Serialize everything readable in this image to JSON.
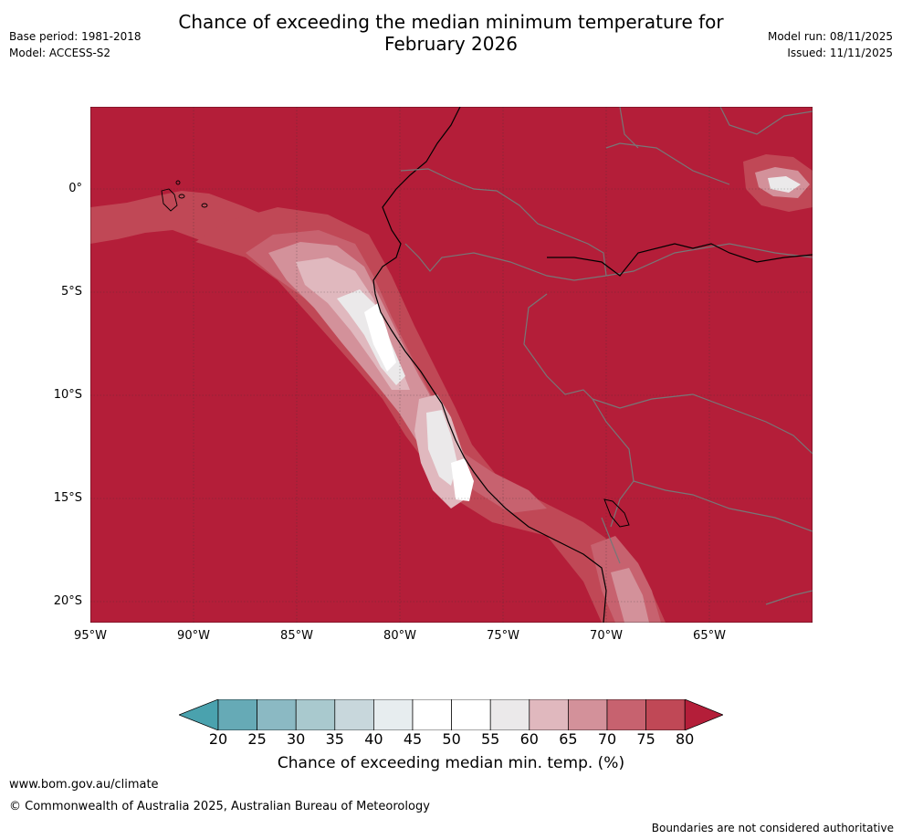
{
  "header": {
    "title_line1": "Chance of exceeding the median minimum temperature for",
    "title_line2": "February 2026",
    "base_period": "Base period: 1981-2018",
    "model": "Model: ACCESS-S2",
    "model_run": "Model run: 08/11/2025",
    "issued": "Issued: 11/11/2025"
  },
  "map": {
    "region": "Western South America and eastern Pacific",
    "lat_labels": [
      "0°",
      "5°S",
      "10°S",
      "15°S",
      "20°S"
    ],
    "lon_labels": [
      "95°W",
      "90°W",
      "85°W",
      "80°W",
      "75°W",
      "70°W",
      "65°W"
    ],
    "background_class_color": "#b41e39"
  },
  "colorbar": {
    "ticks": [
      "20",
      "25",
      "30",
      "35",
      "40",
      "45",
      "50",
      "55",
      "60",
      "65",
      "70",
      "75",
      "80"
    ],
    "colors": [
      "#66aab6",
      "#8bb9c3",
      "#a9c9ce",
      "#c8d7dc",
      "#e7edef",
      "#ffffff",
      "#ffffff",
      "#ebe9ea",
      "#e0b8be",
      "#d3919a",
      "#c7626f",
      "#c04856"
    ],
    "under_color": "#4aa2ae",
    "over_color": "#b41e39",
    "label": "Chance of exceeding median min. temp. (%)"
  },
  "footer": {
    "url": "www.bom.gov.au/climate",
    "copyright": "© Commonwealth of Australia 2025, Australian Bureau of Meteorology",
    "disclaimer": "Boundaries are not considered authoritative"
  }
}
